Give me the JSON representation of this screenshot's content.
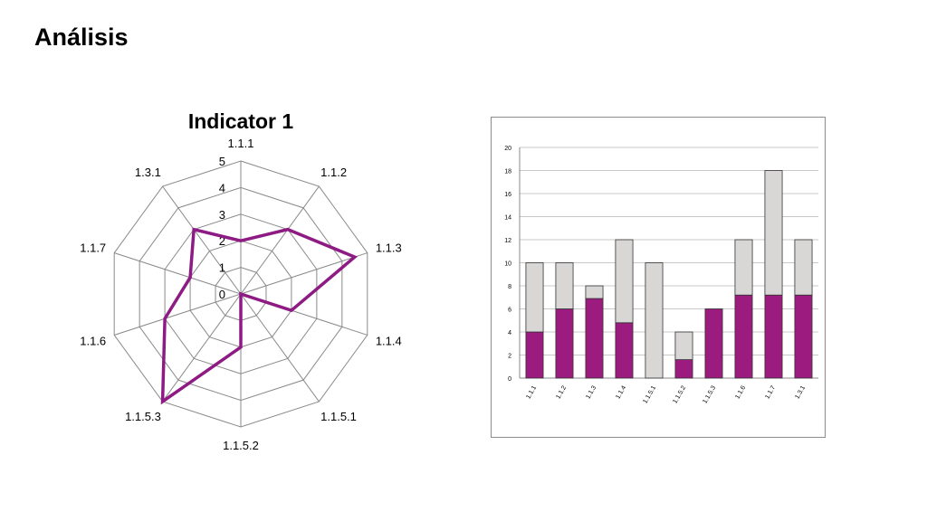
{
  "slide": {
    "title": "Análisis"
  },
  "chart_data": [
    {
      "type": "radar",
      "title": "Indicator 1",
      "categories": [
        "1.1.1",
        "1.1.2",
        "1.1.3",
        "1.1.4",
        "1.1.5.1",
        "1.1.5.2",
        "1.1.5.3",
        "1.1.6",
        "1.1.7",
        "1.3.1"
      ],
      "scale_labels": [
        "0",
        "1",
        "2",
        "3",
        "4",
        "5"
      ],
      "rlim": [
        0,
        5
      ],
      "series": [
        {
          "values": [
            2,
            3,
            4.5,
            2,
            0,
            2,
            5,
            3,
            2,
            3
          ],
          "color": "#8e1b83"
        }
      ]
    },
    {
      "type": "bar",
      "stacked": true,
      "categories": [
        "1.1.1",
        "1.1.2",
        "1.1.3",
        "1.1.4",
        "1.1.5.1",
        "1.1.5.2",
        "1.1.5.3",
        "1.1.6",
        "1.1.7",
        "1.3.1"
      ],
      "ylim": [
        0,
        20
      ],
      "yticks": [
        "0",
        "2",
        "4",
        "6",
        "8",
        "10",
        "12",
        "14",
        "16",
        "18",
        "20"
      ],
      "grid": true,
      "series": [
        {
          "values": [
            4,
            6,
            6.9,
            4.8,
            0,
            1.6,
            6,
            7.2,
            7.2,
            7.2
          ],
          "color": "#9c1b7f"
        },
        {
          "values": [
            6,
            4,
            1.1,
            7.2,
            10,
            2.4,
            0,
            4.8,
            10.8,
            4.8
          ],
          "color": "#d9d6d6"
        }
      ]
    }
  ]
}
